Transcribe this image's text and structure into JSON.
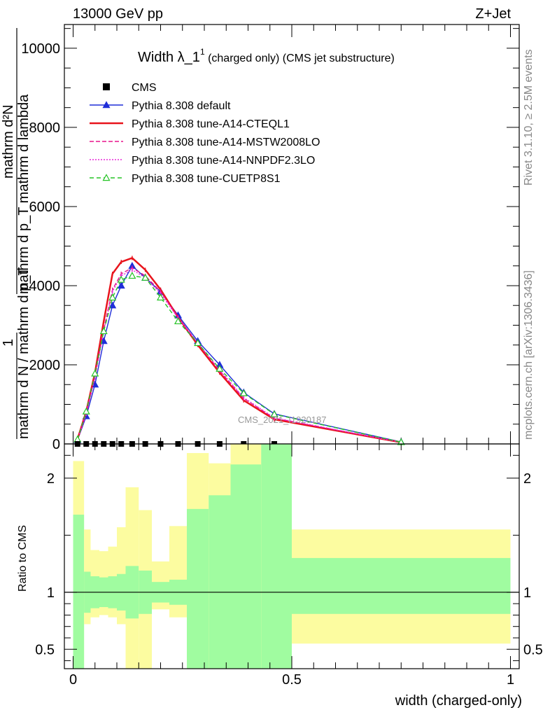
{
  "header": {
    "left": "13000 GeV pp",
    "right": "Z+Jet",
    "side_top": "Rivet 3.1.10, ≥ 2.5M events",
    "side_bottom": "mcplots.cern.ch [arXiv:1306.3436]",
    "watermark": "CMS_2021_I1920187"
  },
  "plot_title": {
    "main": "Width λ_1",
    "sup": "1",
    "suffix": " (charged only) (CMS jet substructure)"
  },
  "chart_data": [
    {
      "type": "line",
      "title": "Width λ_1 1 (charged only) (CMS jet substructure)",
      "ylabel": "1 / mathrm dN / mathrm d p_T mathrm d p_T mathrm d^2N / mathrm d lambda",
      "ylabel_parts": {
        "numerator": "1",
        "denominator": "mathrm d N / mathrm d p_T",
        "fraction_numerator": "mathrm d²N",
        "fraction_denominator": "mathrm d p_T mathrm d lambda"
      },
      "xlim": [
        -0.02,
        1.02
      ],
      "ylim": [
        0,
        10600
      ],
      "yticks": [
        0,
        2000,
        4000,
        6000,
        8000,
        10000
      ],
      "ytick_labels": [
        "0",
        "2000",
        "4000",
        "6000",
        "8000",
        "10000"
      ],
      "legend_position": "top-left",
      "series": [
        {
          "name": "CMS",
          "color": "#000000",
          "marker": "square",
          "x": [
            0.01,
            0.03,
            0.05,
            0.07,
            0.09,
            0.11,
            0.135,
            0.165,
            0.2,
            0.24,
            0.285,
            0.335,
            0.39,
            0.46
          ],
          "values": [
            0,
            0,
            0,
            0,
            0,
            0,
            0,
            0,
            0,
            0,
            0,
            0,
            0,
            0
          ]
        },
        {
          "name": "Pythia 8.308 default",
          "color": "#1f2ed8",
          "marker": "triangle",
          "x": [
            0.01,
            0.03,
            0.05,
            0.07,
            0.09,
            0.11,
            0.135,
            0.165,
            0.2,
            0.24,
            0.285,
            0.335,
            0.39,
            0.46,
            0.75
          ],
          "values": [
            100,
            700,
            1500,
            2600,
            3500,
            4000,
            4500,
            4200,
            3850,
            3250,
            2600,
            2000,
            1300,
            760,
            50
          ]
        },
        {
          "name": "Pythia 8.308 tune-A14-CTEQL1",
          "color": "#e8141c",
          "marker": "none",
          "x": [
            0.01,
            0.03,
            0.05,
            0.07,
            0.09,
            0.11,
            0.135,
            0.165,
            0.2,
            0.24,
            0.285,
            0.335,
            0.39,
            0.46,
            0.75
          ],
          "values": [
            120,
            820,
            1800,
            3100,
            4300,
            4600,
            4700,
            4400,
            3900,
            3200,
            2500,
            1800,
            1100,
            620,
            40
          ]
        },
        {
          "name": "Pythia 8.308 tune-A14-MSTW2008LO",
          "color": "#e8148c",
          "marker": "none",
          "x": [
            0.01,
            0.03,
            0.05,
            0.07,
            0.09,
            0.11,
            0.135,
            0.165,
            0.2,
            0.24,
            0.285,
            0.335,
            0.39,
            0.46,
            0.75
          ],
          "values": [
            110,
            780,
            1700,
            2900,
            3900,
            4300,
            4450,
            4250,
            3850,
            3200,
            2550,
            1850,
            1150,
            650,
            42
          ]
        },
        {
          "name": "Pythia 8.308 tune-A14-NNPDF2.3LO",
          "color": "#e828d8",
          "marker": "none",
          "x": [
            0.01,
            0.03,
            0.05,
            0.07,
            0.09,
            0.11,
            0.135,
            0.165,
            0.2,
            0.24,
            0.285,
            0.335,
            0.39,
            0.46,
            0.75
          ],
          "values": [
            110,
            760,
            1680,
            2850,
            3850,
            4250,
            4400,
            4200,
            3800,
            3180,
            2550,
            1870,
            1170,
            660,
            42
          ]
        },
        {
          "name": "Pythia 8.308 tune-CUETP8S1",
          "color": "#26c426",
          "marker": "triangle-open",
          "x": [
            0.01,
            0.03,
            0.05,
            0.07,
            0.09,
            0.11,
            0.135,
            0.165,
            0.2,
            0.24,
            0.285,
            0.335,
            0.39,
            0.46,
            0.75
          ],
          "values": [
            115,
            820,
            1780,
            2850,
            3700,
            4150,
            4250,
            4200,
            3700,
            3100,
            2550,
            1900,
            1280,
            750,
            45
          ]
        }
      ]
    },
    {
      "type": "area",
      "ylabel": "Ratio to CMS",
      "xlabel": "width (charged-only)",
      "xlim": [
        -0.02,
        1.02
      ],
      "ylim": [
        0.33,
        2.3
      ],
      "xticks": [
        0,
        0.5,
        1
      ],
      "xtick_labels": [
        "0",
        "0.5",
        "1"
      ],
      "yticks": [
        0.5,
        1,
        2
      ],
      "ytick_labels": [
        "0.5",
        "1",
        "2"
      ],
      "reference_line": 1,
      "bins": [
        {
          "x_low": 0.0,
          "x_high": 0.025,
          "stat_low": 0.33,
          "stat_high": 1.68,
          "total_low": 0.33,
          "total_high": 2.15
        },
        {
          "x_low": 0.025,
          "x_high": 0.04,
          "stat_low": 0.82,
          "stat_high": 1.18,
          "total_low": 0.72,
          "total_high": 1.55
        },
        {
          "x_low": 0.04,
          "x_high": 0.06,
          "stat_low": 0.86,
          "stat_high": 1.14,
          "total_low": 0.78,
          "total_high": 1.37
        },
        {
          "x_low": 0.06,
          "x_high": 0.08,
          "stat_low": 0.87,
          "stat_high": 1.13,
          "total_low": 0.8,
          "total_high": 1.36
        },
        {
          "x_low": 0.08,
          "x_high": 0.1,
          "stat_low": 0.86,
          "stat_high": 1.14,
          "total_low": 0.78,
          "total_high": 1.4
        },
        {
          "x_low": 0.1,
          "x_high": 0.12,
          "stat_low": 0.84,
          "stat_high": 1.16,
          "total_low": 0.72,
          "total_high": 1.57
        },
        {
          "x_low": 0.12,
          "x_high": 0.15,
          "stat_low": 0.77,
          "stat_high": 1.23,
          "total_low": 0.33,
          "total_high": 1.92
        },
        {
          "x_low": 0.15,
          "x_high": 0.18,
          "stat_low": 0.81,
          "stat_high": 1.19,
          "total_low": 0.33,
          "total_high": 1.72
        },
        {
          "x_low": 0.18,
          "x_high": 0.22,
          "stat_low": 0.91,
          "stat_high": 1.09,
          "total_low": 0.85,
          "total_high": 1.27
        },
        {
          "x_low": 0.22,
          "x_high": 0.26,
          "stat_low": 0.89,
          "stat_high": 1.11,
          "total_low": 0.78,
          "total_high": 1.58
        },
        {
          "x_low": 0.26,
          "x_high": 0.31,
          "stat_low": 0.33,
          "stat_high": 1.73,
          "total_low": 0.33,
          "total_high": 2.22
        },
        {
          "x_low": 0.31,
          "x_high": 0.36,
          "stat_low": 0.33,
          "stat_high": 1.85,
          "total_low": 0.33,
          "total_high": 2.13
        },
        {
          "x_low": 0.36,
          "x_high": 0.43,
          "stat_low": 0.33,
          "stat_high": 2.12,
          "total_low": 0.33,
          "total_high": 2.3
        },
        {
          "x_low": 0.43,
          "x_high": 0.5,
          "stat_low": 0.33,
          "stat_high": 2.3,
          "total_low": 0.33,
          "total_high": 2.3
        },
        {
          "x_low": 0.5,
          "x_high": 1.0,
          "stat_low": 0.81,
          "stat_high": 1.3,
          "total_low": 0.55,
          "total_high": 1.55
        }
      ],
      "stat_color": "#a0fca0",
      "total_color": "#fcfca0"
    }
  ]
}
